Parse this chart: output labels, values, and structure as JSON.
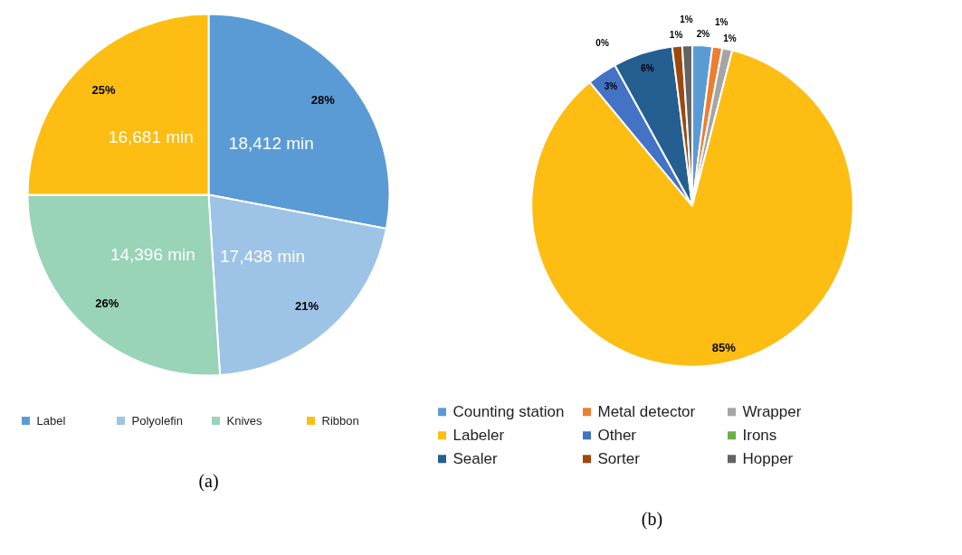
{
  "chart_data": [
    {
      "type": "pie",
      "categories": [
        "Label",
        "Polyolefin",
        "Knives",
        "Ribbon"
      ],
      "values": [
        28,
        21,
        26,
        25
      ],
      "colors": [
        "#5b9bd5",
        "#9dc3e6",
        "#99d3b8",
        "#fdbd12"
      ],
      "value_labels": [
        "28%",
        "21%",
        "26%",
        "25%"
      ],
      "annotations": [
        {
          "text": "18,412 min",
          "x": "Label"
        },
        {
          "text": "17,438 min",
          "x": "Polyolefin"
        },
        {
          "text": "14,396 min",
          "x": "Knives"
        },
        {
          "text": "16,681 min",
          "x": "Ribbon"
        },
        "(a)"
      ],
      "legend": "bottom"
    },
    {
      "type": "pie",
      "categories": [
        "Counting station",
        "Metal detector",
        "Wrapper",
        "Labeler",
        "Other",
        "Irons",
        "Sealer",
        "Sorter",
        "Hopper"
      ],
      "values": [
        2,
        1,
        1,
        85,
        3,
        0,
        6,
        1,
        1
      ],
      "colors": [
        "#5b9bd5",
        "#ed7d31",
        "#a5a5a5",
        "#fdbd12",
        "#4472c4",
        "#70ad47",
        "#255e91",
        "#9e480e",
        "#636363"
      ],
      "value_labels": [
        "2%",
        "1%",
        "1%",
        "85%",
        "3%",
        "0%",
        "6%",
        "1%",
        "1%"
      ],
      "annotations": [
        "(b)"
      ],
      "legend": "bottom"
    }
  ]
}
